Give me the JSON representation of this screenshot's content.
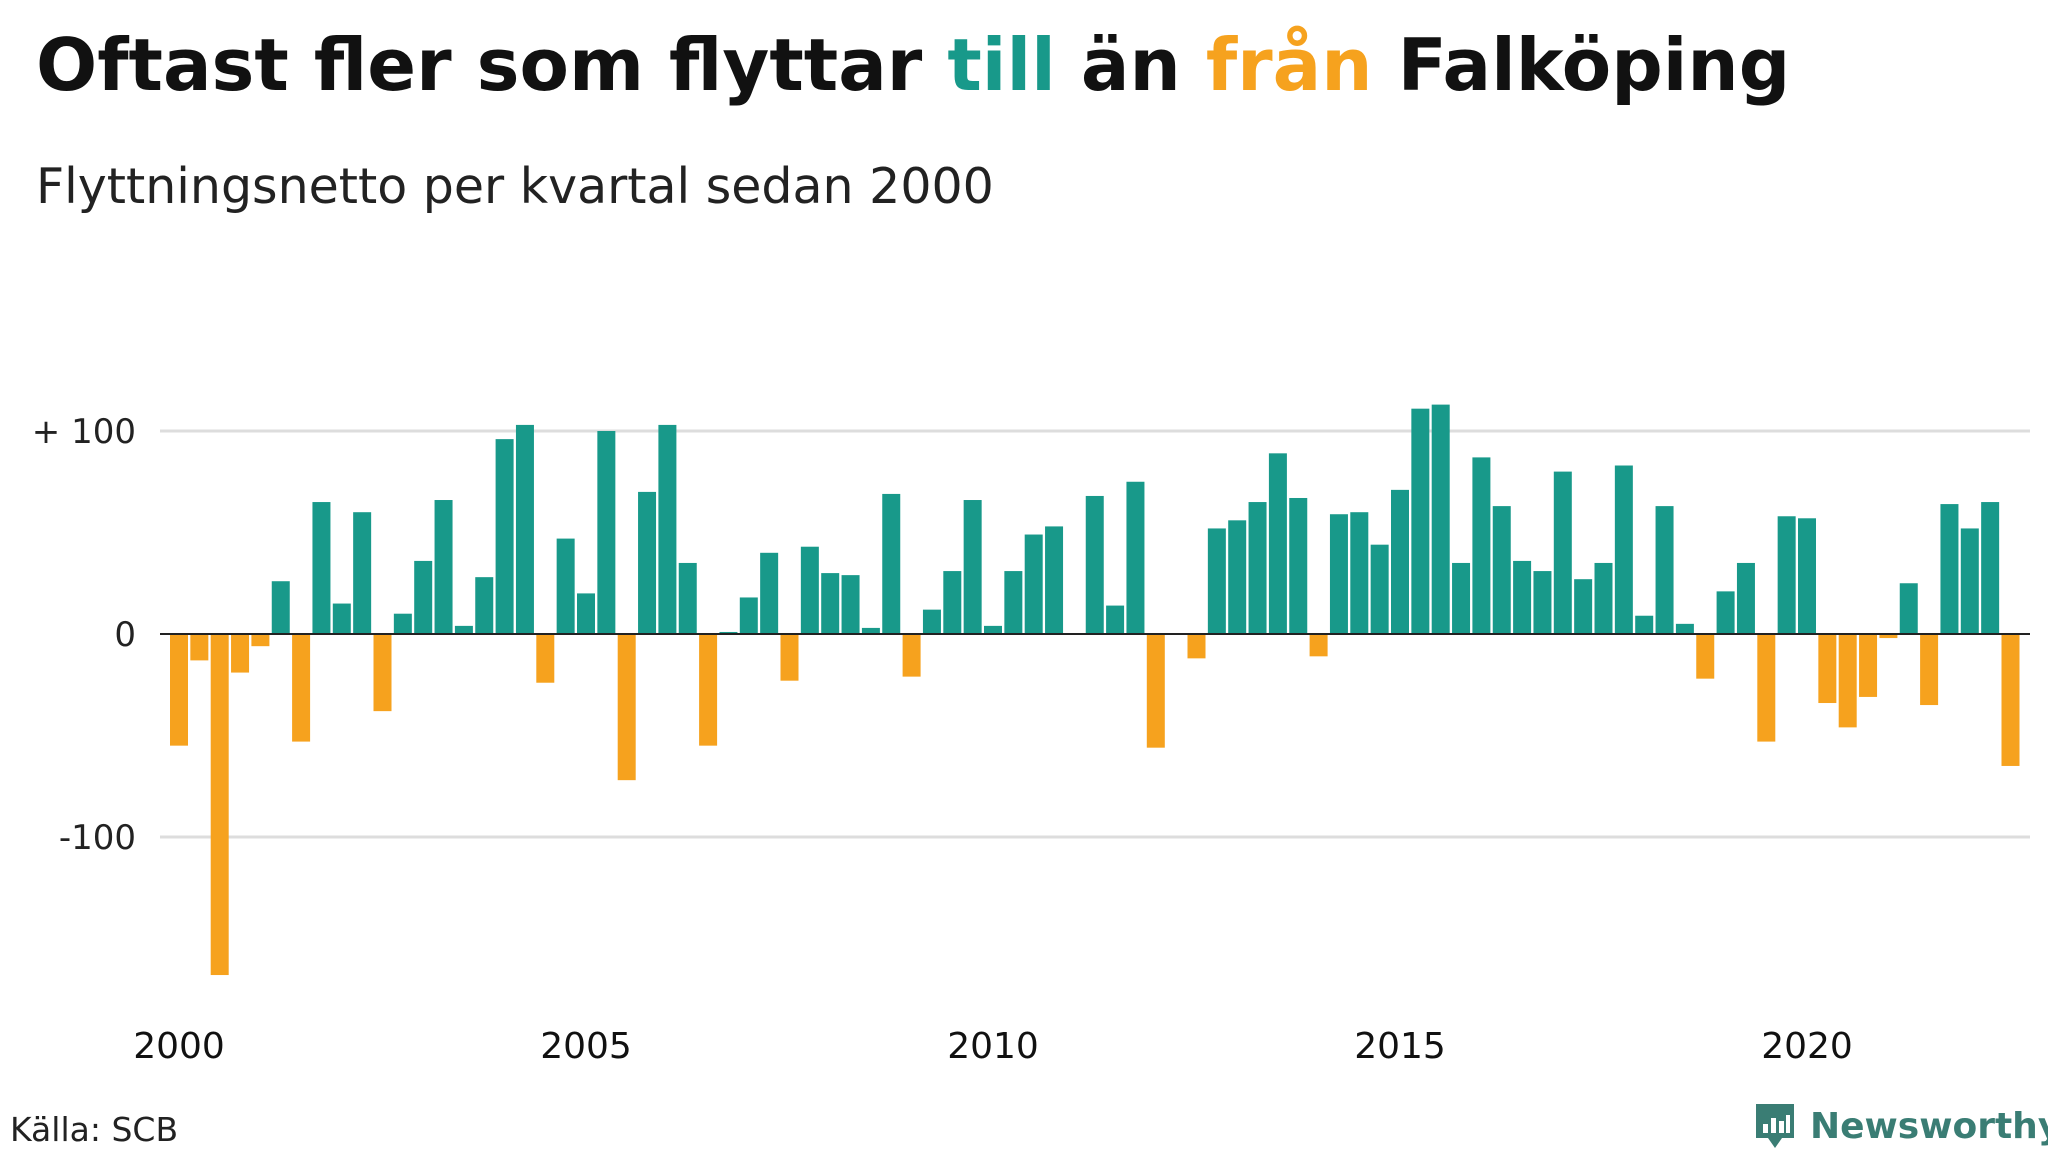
{
  "title": {
    "part1": "Oftast fler som flyttar ",
    "highlight_in": "till",
    "part2": " än ",
    "highlight_out": "från",
    "part3": " Falköping"
  },
  "subtitle": "Flyttningsnetto per kvartal sedan 2000",
  "source": "Källa: SCB",
  "brand": "Newsworthy",
  "colors": {
    "positive": "#18998a",
    "negative": "#f6a21e",
    "grid": "#dddddd",
    "brand": "#3a7d74"
  },
  "chart_data": {
    "type": "bar",
    "x_start": "2000 Q1",
    "interval": "quarter",
    "x_ticks": [
      "2000",
      "2005",
      "2010",
      "2015",
      "2020"
    ],
    "y_ticks": [
      {
        "value": 100,
        "label": "+ 100"
      },
      {
        "value": 0,
        "label": "0"
      },
      {
        "value": -100,
        "label": "-100"
      }
    ],
    "ylim": [
      -175,
      130
    ],
    "grid": true,
    "values": [
      -55,
      -13,
      -168,
      -19,
      -6,
      26,
      -53,
      65,
      15,
      60,
      -38,
      10,
      36,
      66,
      4,
      28,
      96,
      103,
      -24,
      47,
      20,
      100,
      -72,
      70,
      103,
      35,
      -55,
      1,
      18,
      40,
      -23,
      43,
      30,
      29,
      3,
      69,
      -21,
      12,
      31,
      66,
      4,
      31,
      49,
      53,
      0,
      68,
      14,
      75,
      -56,
      0,
      -12,
      52,
      56,
      65,
      89,
      67,
      -11,
      59,
      60,
      44,
      71,
      111,
      113,
      35,
      87,
      63,
      36,
      31,
      80,
      27,
      35,
      83,
      9,
      63,
      5,
      -22,
      21,
      35,
      -53,
      58,
      57,
      -34,
      -46,
      -31,
      -2,
      25,
      -35,
      64,
      52,
      65,
      -65
    ]
  }
}
